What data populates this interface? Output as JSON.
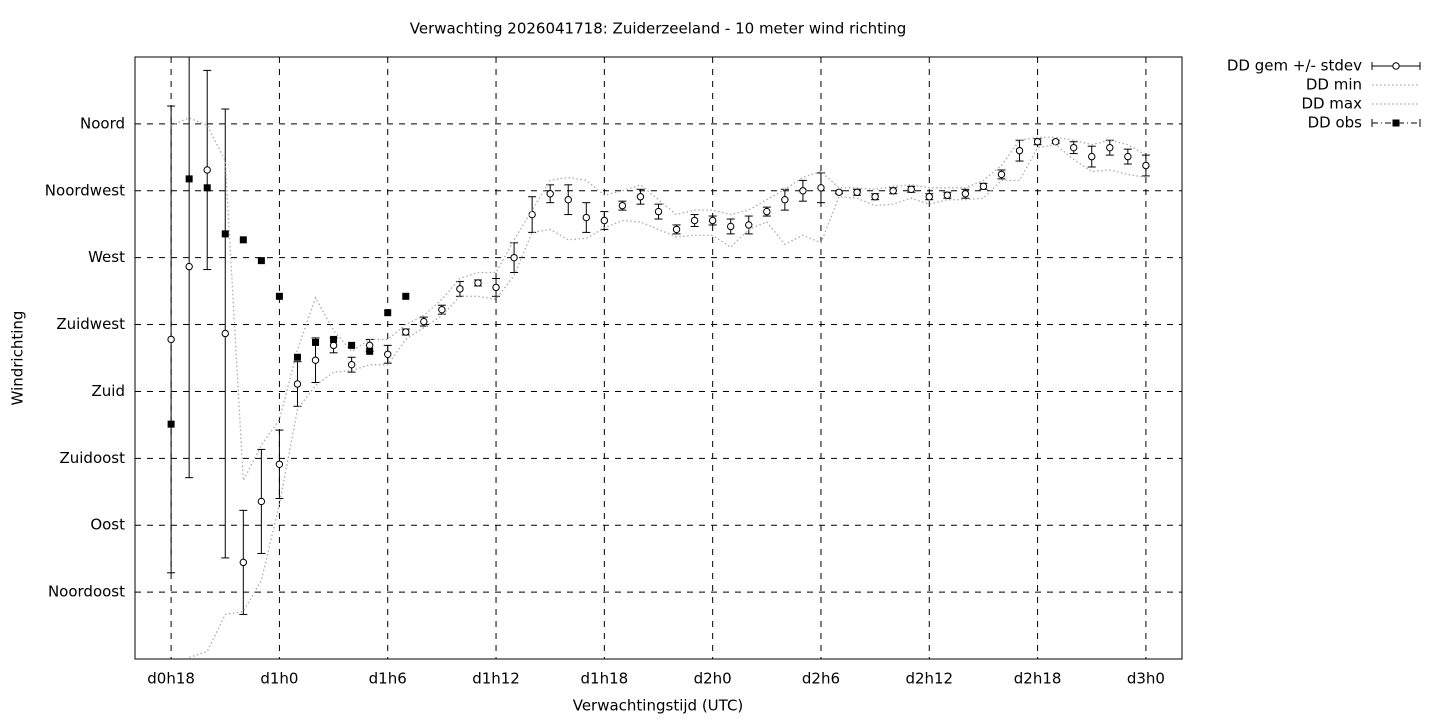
{
  "chart_data": {
    "type": "errorbar-line",
    "title": "Verwachting 2026041718: Zuiderzeeland - 10 meter wind richting",
    "x_label": "Verwachtingstijd (UTC)",
    "y_label": "Windrichting",
    "xlim": [
      16,
      74
    ],
    "ylim": [
      0,
      405
    ],
    "grid": true,
    "legend": "outside-top-right",
    "xticks": [
      {
        "value": 18,
        "label": "d0h18"
      },
      {
        "value": 24,
        "label": "d1h0"
      },
      {
        "value": 30,
        "label": "d1h6"
      },
      {
        "value": 36,
        "label": "d1h12"
      },
      {
        "value": 42,
        "label": "d1h18"
      },
      {
        "value": 48,
        "label": "d2h0"
      },
      {
        "value": 54,
        "label": "d2h6"
      },
      {
        "value": 60,
        "label": "d2h12"
      },
      {
        "value": 66,
        "label": "d2h18"
      },
      {
        "value": 72,
        "label": "d3h0"
      }
    ],
    "yticks": [
      {
        "value": 45,
        "label": "Noordoost"
      },
      {
        "value": 90,
        "label": "Oost"
      },
      {
        "value": 135,
        "label": "Zuidoost"
      },
      {
        "value": 180,
        "label": "Zuid"
      },
      {
        "value": 225,
        "label": "Zuidwest"
      },
      {
        "value": 270,
        "label": "West"
      },
      {
        "value": 315,
        "label": "Noordwest"
      },
      {
        "value": 360,
        "label": "Noord"
      }
    ],
    "x": [
      18,
      19,
      20,
      21,
      22,
      23,
      24,
      25,
      26,
      27,
      28,
      29,
      30,
      31,
      32,
      33,
      34,
      35,
      36,
      37,
      38,
      39,
      40,
      41,
      42,
      43,
      44,
      45,
      46,
      47,
      48,
      49,
      50,
      51,
      52,
      53,
      54,
      55,
      56,
      57,
      58,
      59,
      60,
      61,
      62,
      63,
      64,
      65,
      66,
      67,
      68,
      69,
      70,
      71,
      72
    ],
    "series": [
      {
        "name": "DD gem +/- stdev",
        "style": "errorbar",
        "color": "#000000",
        "values": [
          215,
          264,
          329,
          219,
          65,
          106,
          131,
          185,
          201,
          211,
          198,
          211,
          205,
          220,
          227,
          235,
          249,
          253,
          250,
          270,
          299,
          313,
          309,
          297,
          295,
          305,
          311,
          301,
          289,
          295,
          295,
          291,
          292,
          301,
          309,
          315,
          317,
          314,
          314,
          311,
          315,
          316,
          311,
          312,
          313,
          318,
          326,
          342,
          348,
          348,
          344,
          338,
          344,
          338,
          332
        ],
        "errors": [
          157,
          142,
          67,
          151,
          35,
          35,
          23,
          15,
          15,
          5,
          5,
          4,
          6,
          2,
          3,
          3,
          5,
          2,
          6,
          10,
          12,
          6,
          10,
          10,
          6,
          3,
          5,
          5,
          3,
          4,
          3,
          5,
          6,
          3,
          7,
          7,
          10,
          1,
          2,
          2,
          2,
          2,
          2,
          2,
          3,
          2,
          3,
          7,
          2,
          1,
          4,
          7,
          5,
          5,
          7
        ]
      },
      {
        "name": "DD min",
        "style": "dotted",
        "color": "#aaaaaa",
        "values": [
          null,
          1,
          5,
          30,
          32,
          53,
          104,
          168,
          184,
          193,
          194,
          198,
          198,
          215,
          223,
          231,
          244,
          244,
          242,
          258,
          287,
          289,
          282,
          283,
          290,
          295,
          294,
          289,
          284,
          285,
          285,
          277,
          289,
          294,
          279,
          285,
          280,
          311,
          310,
          305,
          306,
          310,
          306,
          309,
          309,
          310,
          322,
          322,
          344,
          346,
          336,
          328,
          329,
          326,
          324
        ]
      },
      {
        "name": "DD max",
        "style": "dotted",
        "color": "#aaaaaa",
        "values": [
          359,
          364,
          359,
          335,
          120,
          144,
          161,
          208,
          243,
          221,
          207,
          215,
          215,
          225,
          231,
          242,
          256,
          260,
          260,
          282,
          302,
          322,
          324,
          322,
          312,
          315,
          319,
          309,
          299,
          302,
          302,
          299,
          302,
          309,
          316,
          324,
          328,
          317,
          317,
          316,
          318,
          319,
          317,
          317,
          317,
          322,
          332,
          349,
          351,
          351,
          349,
          346,
          349,
          346,
          339
        ]
      },
      {
        "name": "DD obs",
        "style": "squares",
        "color": "#000000",
        "values": [
          158,
          323,
          317,
          286,
          282,
          268,
          244,
          203,
          213,
          215,
          211,
          207,
          233,
          244,
          null,
          null,
          null,
          null,
          null,
          null,
          null,
          null,
          null,
          null,
          null,
          null,
          null,
          null,
          null,
          null,
          null,
          null,
          null,
          null,
          null,
          null,
          null,
          null,
          null,
          null,
          null,
          null,
          null,
          null,
          null,
          null,
          null,
          null,
          null,
          null,
          null,
          null,
          null,
          null,
          null
        ]
      }
    ]
  }
}
